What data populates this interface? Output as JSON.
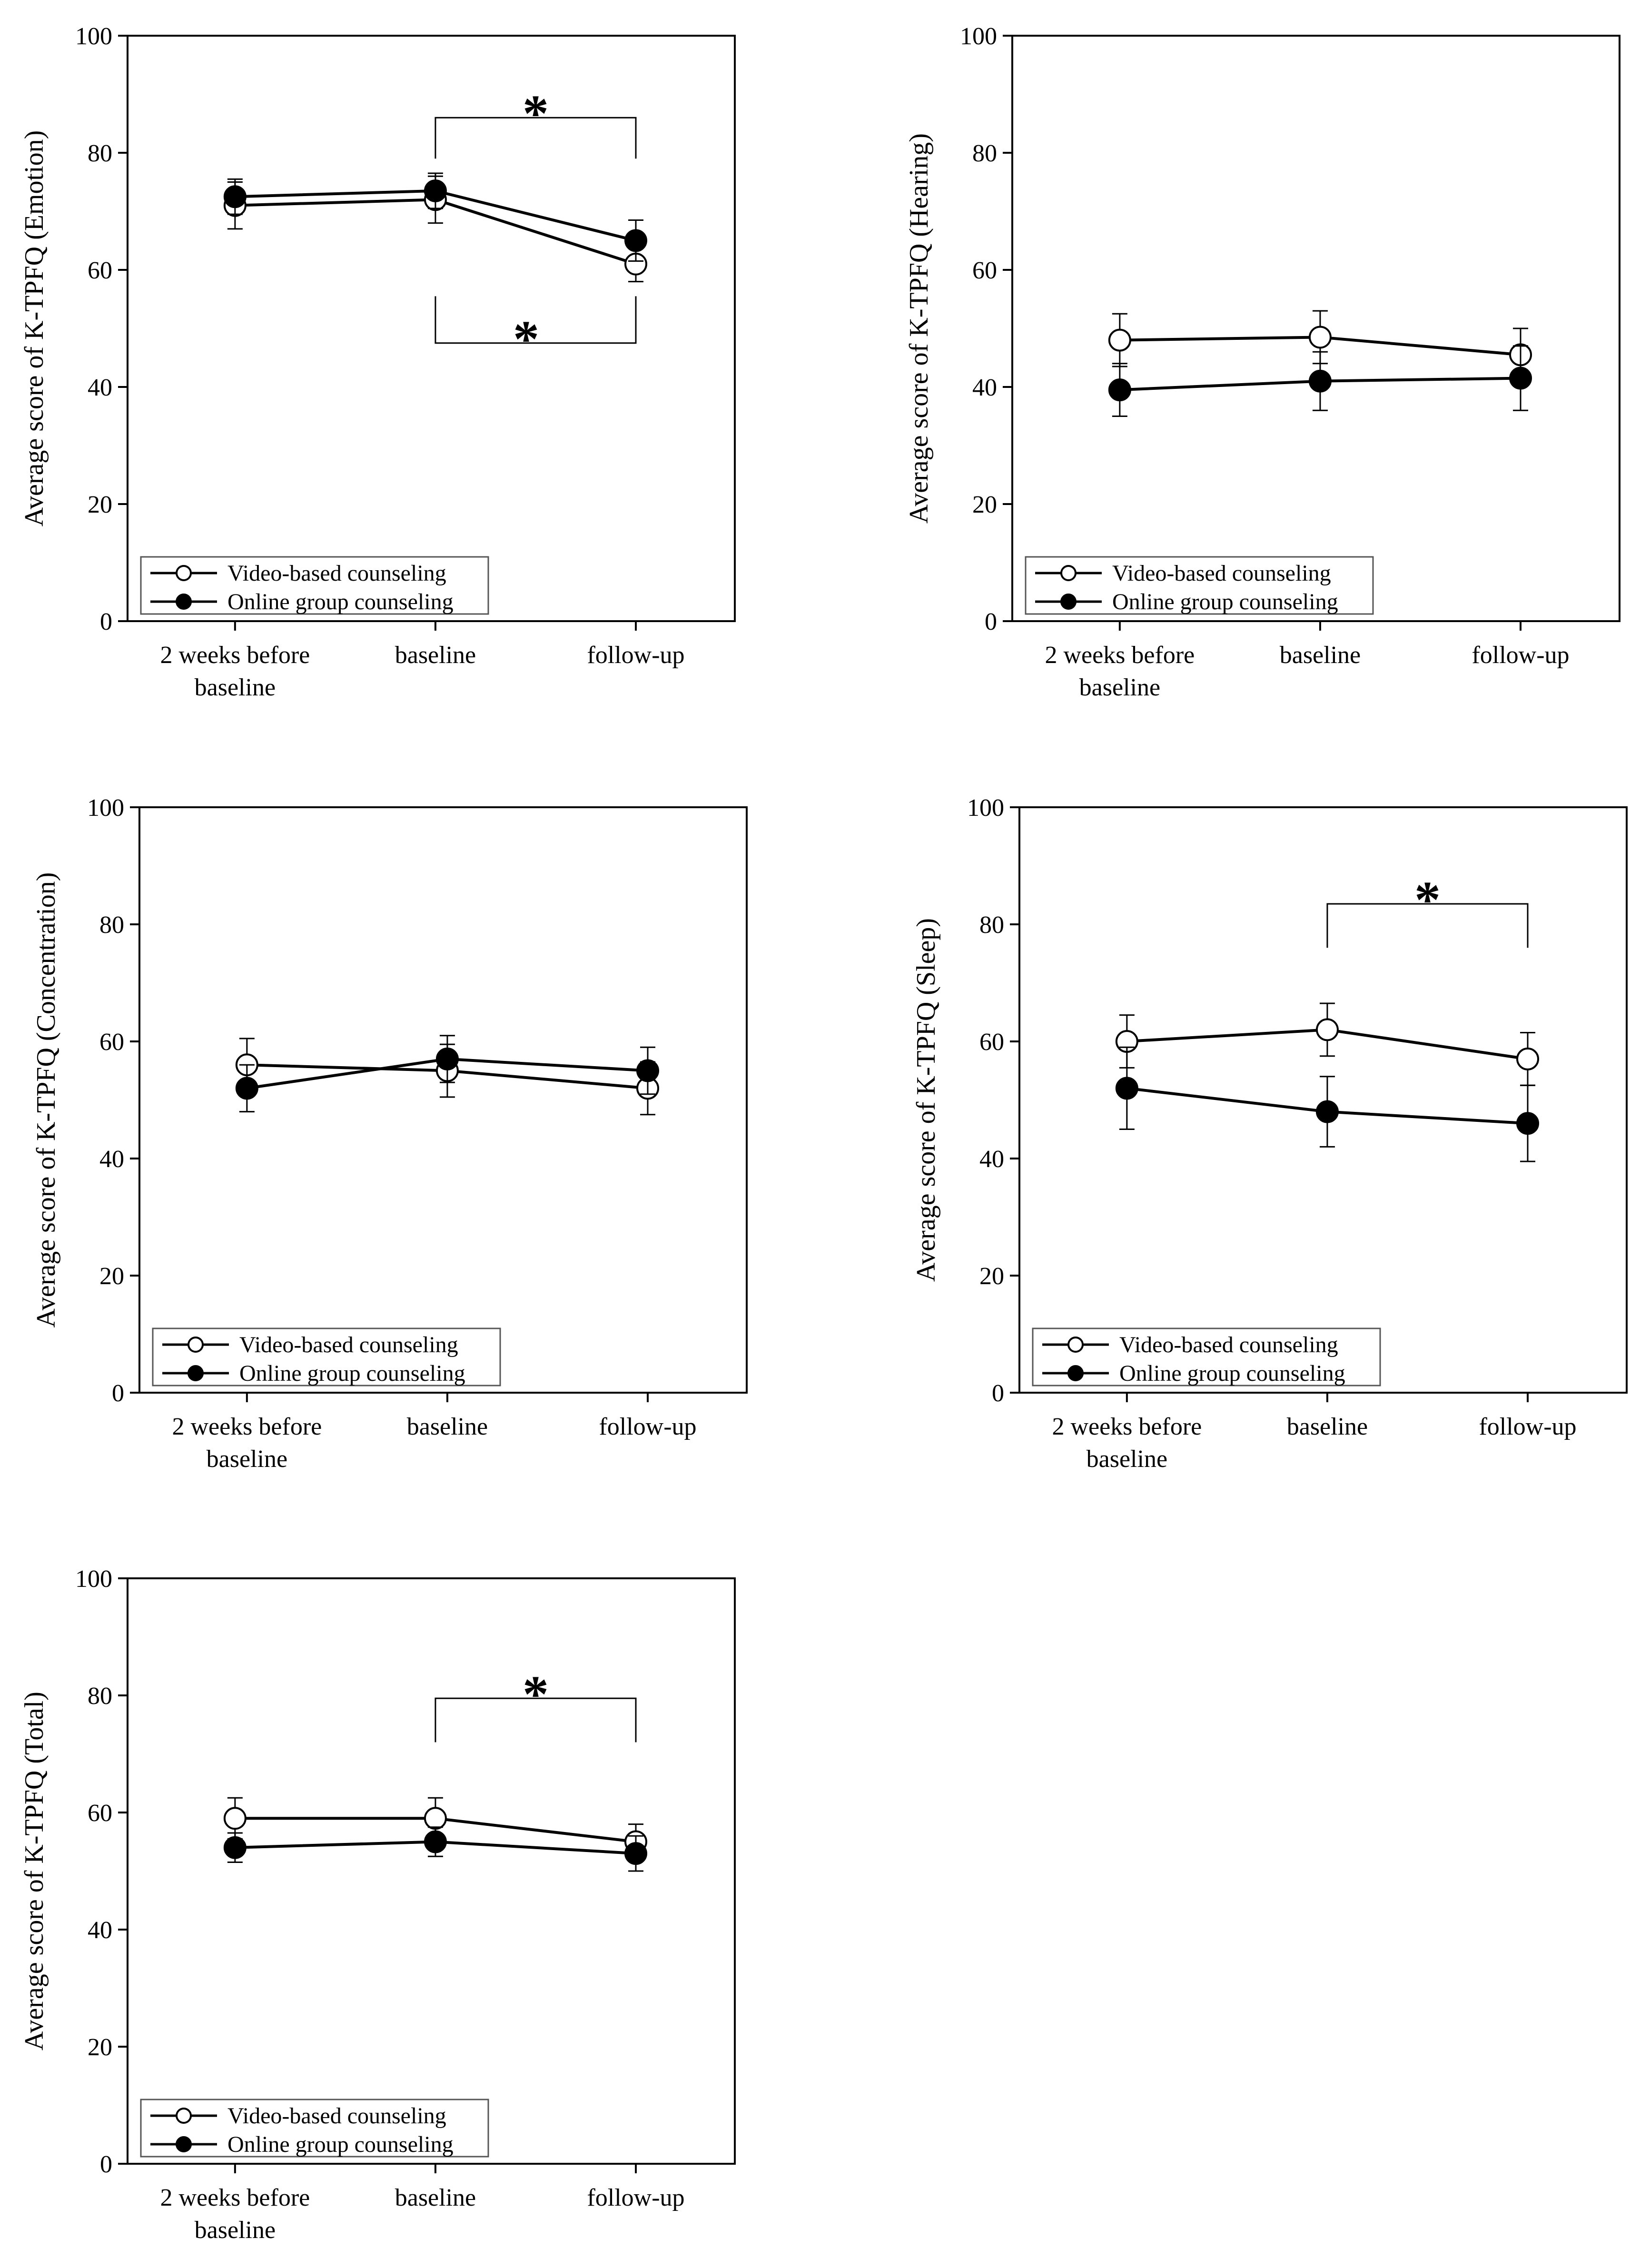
{
  "colors": {
    "axis": "#000000",
    "open_marker_fill": "#ffffff",
    "filled_marker": "#000000"
  },
  "chart_data": [
    {
      "type": "line",
      "ylabel": "Average score of K-TPFQ (Emotion)",
      "categories": [
        "2 weeks before\nbaseline",
        "baseline",
        "follow-up"
      ],
      "ylim": [
        0,
        100
      ],
      "yticks": [
        0,
        20,
        40,
        60,
        80,
        100
      ],
      "legend": {
        "position": "bottom-left",
        "entries": [
          "Video-based counseling",
          "Online group counseling"
        ]
      },
      "series": [
        {
          "name": "Video-based counseling",
          "marker": "open-circle",
          "values": [
            71,
            72,
            61
          ],
          "error": [
            4,
            4,
            3
          ]
        },
        {
          "name": "Online group counseling",
          "marker": "filled-circle",
          "values": [
            72.5,
            73.5,
            65
          ],
          "error": [
            3,
            3,
            3.5
          ]
        }
      ],
      "annotations": [
        {
          "type": "significance",
          "from": 1,
          "to": 2,
          "side": "above",
          "level": 86,
          "drop": 79,
          "label": "*"
        },
        {
          "type": "significance",
          "from": 1,
          "to": 2,
          "side": "below",
          "level": 47.5,
          "rise": 55.5,
          "label": "*"
        }
      ]
    },
    {
      "type": "line",
      "ylabel": "Average score of K-TPFQ (Hearing)",
      "categories": [
        "2 weeks before\nbaseline",
        "baseline",
        "follow-up"
      ],
      "ylim": [
        0,
        100
      ],
      "yticks": [
        0,
        20,
        40,
        60,
        80,
        100
      ],
      "legend": {
        "position": "bottom-left",
        "entries": [
          "Video-based counseling",
          "Online group counseling"
        ]
      },
      "series": [
        {
          "name": "Video-based counseling",
          "marker": "open-circle",
          "values": [
            48,
            48.5,
            45.5
          ],
          "error": [
            4.5,
            4.5,
            4.5
          ]
        },
        {
          "name": "Online group counseling",
          "marker": "filled-circle",
          "values": [
            39.5,
            41,
            41.5
          ],
          "error": [
            4.5,
            5,
            5.5
          ]
        }
      ],
      "annotations": []
    },
    {
      "type": "line",
      "ylabel": "Average score of K-TPFQ (Concentration)",
      "categories": [
        "2 weeks before\nbaseline",
        "baseline",
        "follow-up"
      ],
      "ylim": [
        0,
        100
      ],
      "yticks": [
        0,
        20,
        40,
        60,
        80,
        100
      ],
      "legend": {
        "position": "bottom-left",
        "entries": [
          "Video-based counseling",
          "Online group counseling"
        ]
      },
      "series": [
        {
          "name": "Video-based counseling",
          "marker": "open-circle",
          "values": [
            56,
            55,
            52
          ],
          "error": [
            4.5,
            4.5,
            4.5
          ]
        },
        {
          "name": "Online group counseling",
          "marker": "filled-circle",
          "values": [
            52,
            57,
            55
          ],
          "error": [
            4,
            4,
            4
          ]
        }
      ],
      "annotations": []
    },
    {
      "type": "line",
      "ylabel": "Average score of K-TPFQ (Sleep)",
      "categories": [
        "2 weeks before\nbaseline",
        "baseline",
        "follow-up"
      ],
      "ylim": [
        0,
        100
      ],
      "yticks": [
        0,
        20,
        40,
        60,
        80,
        100
      ],
      "legend": {
        "position": "bottom-left",
        "entries": [
          "Video-based counseling",
          "Online group counseling"
        ]
      },
      "series": [
        {
          "name": "Video-based counseling",
          "marker": "open-circle",
          "values": [
            60,
            62,
            57
          ],
          "error": [
            4.5,
            4.5,
            4.5
          ]
        },
        {
          "name": "Online group counseling",
          "marker": "filled-circle",
          "values": [
            52,
            48,
            46
          ],
          "error": [
            7,
            6,
            6.5
          ]
        }
      ],
      "annotations": [
        {
          "type": "significance",
          "from": 1,
          "to": 2,
          "side": "above",
          "level": 83.5,
          "drop": 76,
          "label": "*"
        }
      ]
    },
    {
      "type": "line",
      "ylabel": "Average score of K-TPFQ (Total)",
      "categories": [
        "2 weeks before\nbaseline",
        "baseline",
        "follow-up"
      ],
      "ylim": [
        0,
        100
      ],
      "yticks": [
        0,
        20,
        40,
        60,
        80,
        100
      ],
      "legend": {
        "position": "bottom-left",
        "entries": [
          "Video-based counseling",
          "Online group counseling"
        ]
      },
      "series": [
        {
          "name": "Video-based counseling",
          "marker": "open-circle",
          "values": [
            59,
            59,
            55
          ],
          "error": [
            3.5,
            3.5,
            3
          ]
        },
        {
          "name": "Online group counseling",
          "marker": "filled-circle",
          "values": [
            54,
            55,
            53
          ],
          "error": [
            2.5,
            2.5,
            3
          ]
        }
      ],
      "annotations": [
        {
          "type": "significance",
          "from": 1,
          "to": 2,
          "side": "above",
          "level": 79.5,
          "drop": 72,
          "label": "*"
        }
      ]
    }
  ]
}
